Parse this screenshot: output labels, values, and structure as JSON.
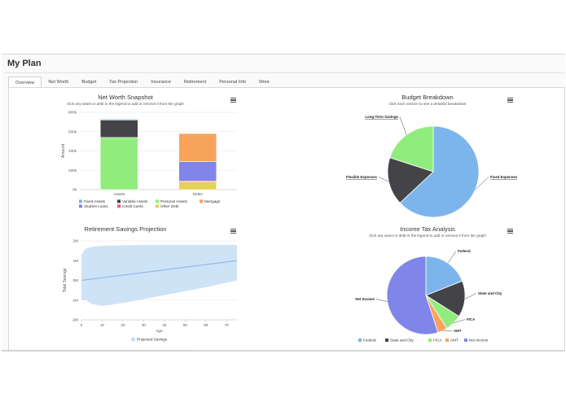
{
  "page_title": "My Plan",
  "tabs": [
    {
      "label": "Overview",
      "active": true
    },
    {
      "label": "Net Worth",
      "active": false
    },
    {
      "label": "Budget",
      "active": false
    },
    {
      "label": "Tax Projection",
      "active": false
    },
    {
      "label": "Insurance",
      "active": false
    },
    {
      "label": "Retirement",
      "active": false
    },
    {
      "label": "Personal Info",
      "active": false
    },
    {
      "label": "More",
      "active": false
    }
  ],
  "icons": {
    "chart_menu": "hamburger-menu-icon"
  },
  "chart_data": [
    {
      "id": "net-worth",
      "type": "bar",
      "stacked": true,
      "title": "Net Worth Snapshot",
      "subtitle": "click any asset or debt in the legend to add or remove it from the graph",
      "ylabel": "Amount",
      "xlabel": "",
      "categories": [
        "Assets",
        "Debts"
      ],
      "ylim": [
        0,
        800000
      ],
      "yticks": [
        0,
        200000,
        400000,
        600000,
        800000
      ],
      "ytick_labels": [
        "0k",
        "200k",
        "400k",
        "600k",
        "800k"
      ],
      "grid": true,
      "series": [
        {
          "name": "Fixed Assets",
          "color": "#7cb5ec",
          "values": [
            10000,
            0
          ]
        },
        {
          "name": "Variable Assets",
          "color": "#434348",
          "values": [
            180000,
            0
          ]
        },
        {
          "name": "Personal Assets",
          "color": "#90ed7d",
          "values": [
            540000,
            0
          ]
        },
        {
          "name": "Mortgage",
          "color": "#f7a35c",
          "values": [
            0,
            290000
          ]
        },
        {
          "name": "Student Loans",
          "color": "#8085e9",
          "values": [
            0,
            200000
          ]
        },
        {
          "name": "Credit Cards",
          "color": "#f15c80",
          "values": [
            0,
            10000
          ]
        },
        {
          "name": "Other Debt",
          "color": "#e4d354",
          "values": [
            0,
            80000
          ]
        }
      ],
      "legend": "bottom"
    },
    {
      "id": "budget",
      "type": "pie",
      "title": "Budget Breakdown",
      "subtitle": "click each section to see a detailed breakdown",
      "slices": [
        {
          "name": "Fixed Expenses",
          "value": 63,
          "color": "#7cb5ec"
        },
        {
          "name": "Flexible Expenses",
          "value": 17,
          "color": "#434348"
        },
        {
          "name": "Long-Term Savings",
          "value": 20,
          "color": "#90ed7d"
        }
      ]
    },
    {
      "id": "retirement",
      "type": "area",
      "title": "Retirement Savings Projection",
      "subtitle": "",
      "xlabel": "Age",
      "ylabel": "Total Savings",
      "xlim": [
        0,
        75
      ],
      "xticks": [
        0,
        10,
        20,
        30,
        40,
        50,
        60,
        70
      ],
      "ylim": [
        -2000000,
        2000000
      ],
      "yticks": [
        -2000000,
        -1000000,
        0,
        1000000,
        2000000
      ],
      "ytick_labels": [
        "-2M",
        "-1M",
        "0M",
        "1M",
        "2M"
      ],
      "series": [
        {
          "name": "Projected Savings",
          "color": "#7cb5ec",
          "x": [
            0,
            75
          ],
          "y": [
            0,
            1000000
          ]
        }
      ],
      "band": {
        "x": [
          0,
          2,
          5,
          10,
          20,
          30,
          40,
          50,
          60,
          75
        ],
        "upper": [
          1300000,
          1600000,
          1700000,
          1750000,
          1780000,
          1790000,
          1800000,
          1800000,
          1800000,
          1800000
        ],
        "lower": [
          -1000000,
          -1000000,
          -1200000,
          -1300000,
          -1150000,
          -950000,
          -750000,
          -550000,
          -350000,
          0
        ],
        "color": "#cfe3f6"
      },
      "legend": "bottom"
    },
    {
      "id": "income-tax",
      "type": "pie",
      "title": "Income Tax Analysis",
      "subtitle": "click any asset or debt in the legend to add or remove it from the graph",
      "slices": [
        {
          "name": "Federal",
          "value": 19,
          "color": "#7cb5ec"
        },
        {
          "name": "State and City",
          "value": 15,
          "color": "#434348"
        },
        {
          "name": "FICA",
          "value": 7,
          "color": "#90ed7d"
        },
        {
          "name": "AMT",
          "value": 4,
          "color": "#f7a35c"
        },
        {
          "name": "Net Income",
          "value": 55,
          "color": "#8085e9"
        }
      ],
      "legend": "bottom"
    }
  ]
}
